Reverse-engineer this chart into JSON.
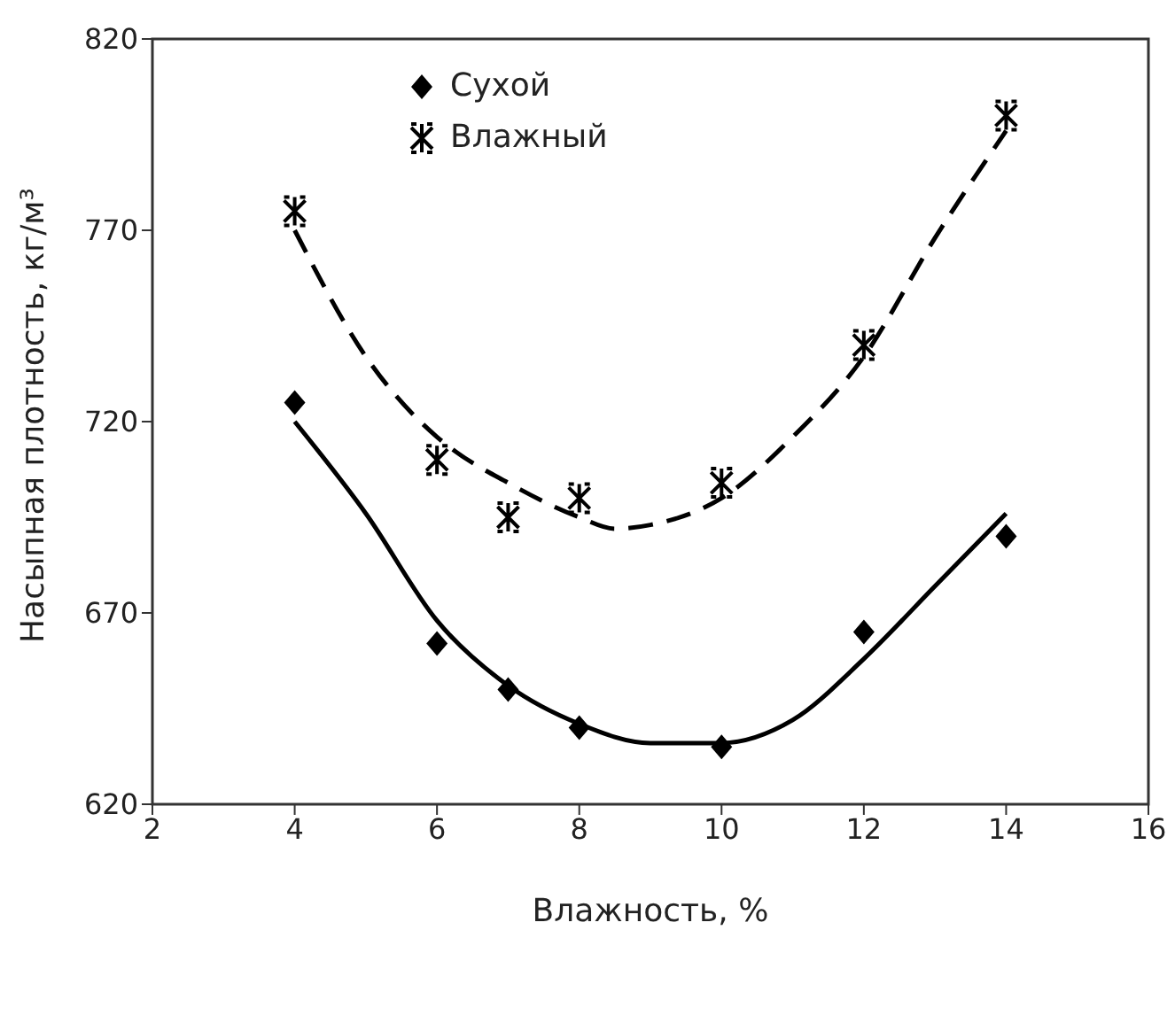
{
  "chart_data": {
    "type": "scatter",
    "xlabel": "Влажность, %",
    "ylabel": "Насыпная плотность, кг/м³",
    "xlim": [
      2,
      16
    ],
    "xticks": [
      2,
      4,
      6,
      8,
      10,
      12,
      14,
      16
    ],
    "ylim": [
      620,
      820
    ],
    "yticks": [
      620,
      670,
      720,
      770,
      820
    ],
    "grid": false,
    "legend": "top left",
    "series": [
      {
        "name": "Сухой",
        "color": "#000000",
        "marker": "diamond",
        "x": [
          4,
          6,
          7,
          8,
          10,
          12,
          14
        ],
        "values": [
          725,
          662,
          650,
          640,
          635,
          665,
          690
        ]
      },
      {
        "name": "Влажный",
        "color": "#000000",
        "marker": "cross",
        "x": [
          4,
          6,
          7,
          8,
          10,
          12,
          14
        ],
        "values": [
          775,
          710,
          695,
          700,
          704,
          740,
          800
        ]
      },
      {
        "type": "line",
        "color": "#000000",
        "line_style": "solid",
        "marker": "none",
        "x": [
          4,
          5,
          6,
          7,
          8,
          9,
          10,
          11,
          12,
          13,
          14
        ],
        "values": [
          720,
          696,
          668,
          651,
          641,
          636,
          636,
          642,
          658,
          677,
          696
        ]
      },
      {
        "type": "line",
        "color": "#000000",
        "line_style": "dashed",
        "marker": "none",
        "x": [
          4,
          5,
          6,
          6.2,
          7,
          8,
          8.5,
          9,
          10,
          11,
          12,
          13,
          14
        ],
        "values": [
          770,
          737,
          716,
          713,
          704,
          695,
          692,
          693,
          700,
          716,
          737,
          768,
          796
        ]
      }
    ]
  }
}
